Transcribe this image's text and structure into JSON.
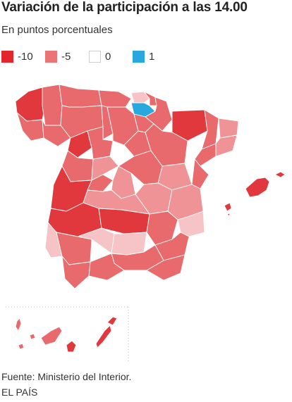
{
  "title": "Variación de la participación a las 14.00",
  "subtitle": "En puntos porcentuales",
  "legend": [
    {
      "label": "-10",
      "color": "#e3262b",
      "border": "#e3262b"
    },
    {
      "label": "-5",
      "color": "#eb7474",
      "border": "#eb7474"
    },
    {
      "label": "0",
      "color": "#ffffff",
      "border": "#cccccc"
    },
    {
      "label": "1",
      "color": "#29a8e0",
      "border": "#29a8e0"
    }
  ],
  "colors": {
    "strong": "#e0383c",
    "medium": "#e86a6c",
    "light": "#ef9396",
    "pale": "#f6c4c6",
    "positive": "#29a8e0",
    "inset_frame": "#bbbbbb",
    "border": "#ffffff"
  },
  "footer": {
    "source": "Fuente: Ministerio del Interior.",
    "brand": "EL PAÍS"
  }
}
